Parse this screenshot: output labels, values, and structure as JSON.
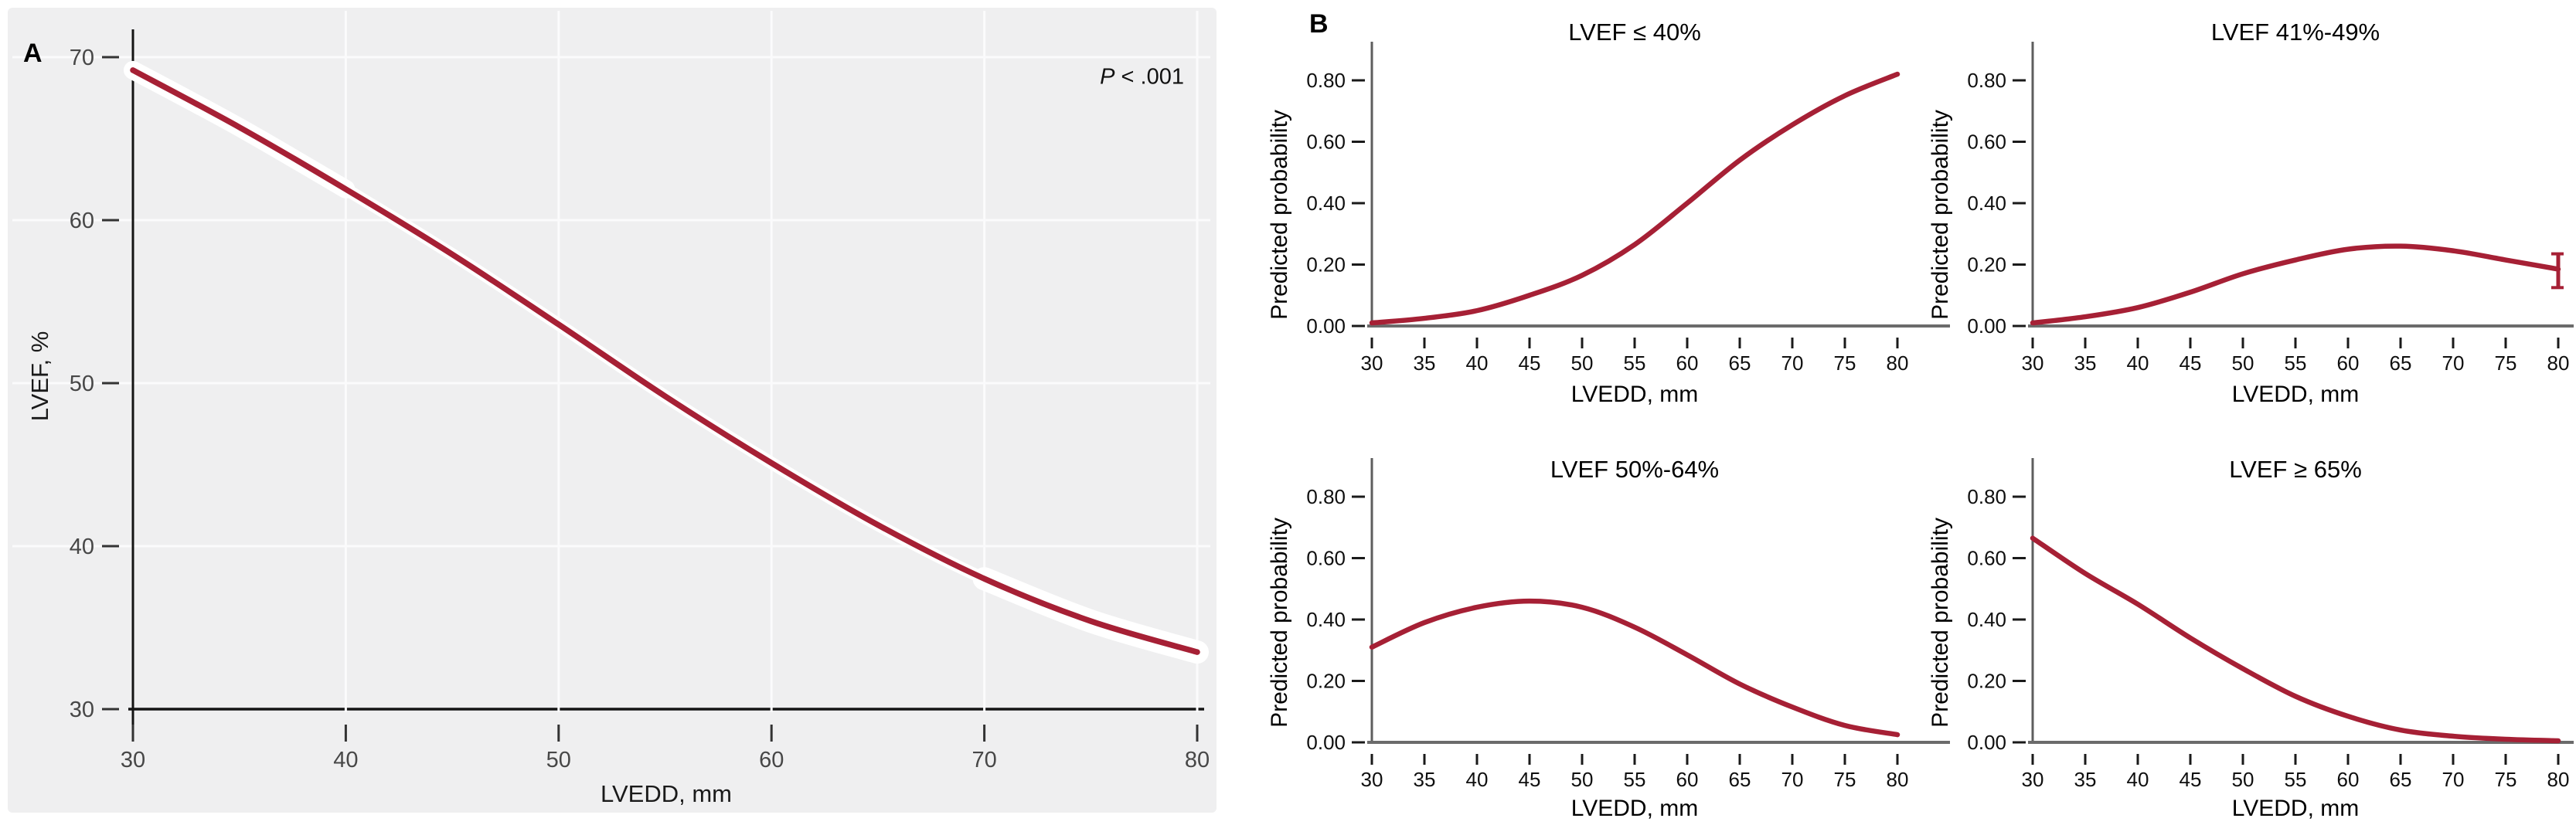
{
  "figure": {
    "panels": {
      "a_label": "A",
      "b_label": "B"
    },
    "p_value": {
      "italic": "P",
      "rest": " < .001"
    }
  },
  "colors": {
    "curve": "#A62035",
    "ci_band": "#ffffff",
    "panel_a_background": "#efeff0",
    "axis_dark": "#141414",
    "axis_gray": "#5e5e5e",
    "baseline_gray": "#6b6b6b"
  },
  "chart_data": [
    {
      "id": "panel-a",
      "type": "line",
      "panel": "A",
      "title": "",
      "xlabel": "LVEDD, mm",
      "ylabel": "LVEF, %",
      "xlim": [
        30,
        80
      ],
      "ylim": [
        30,
        70
      ],
      "grid": true,
      "annotation": "P < .001",
      "x_tick_values": [
        30,
        40,
        50,
        60,
        70,
        80
      ],
      "x_tick_labels": [
        "30",
        "40",
        "50",
        "60",
        "70",
        "80"
      ],
      "y_tick_values": [
        30,
        40,
        50,
        60,
        70
      ],
      "y_tick_labels": [
        "30",
        "40",
        "50",
        "60",
        "70"
      ],
      "line_color": "#A62035",
      "ci_color": "#ffffff",
      "points": [
        [
          30,
          69.2
        ],
        [
          35,
          65.7
        ],
        [
          40,
          61.9
        ],
        [
          45,
          57.9
        ],
        [
          50,
          53.6
        ],
        [
          55,
          49.2
        ],
        [
          60,
          45.1
        ],
        [
          65,
          41.3
        ],
        [
          70,
          38.0
        ],
        [
          75,
          35.4
        ],
        [
          80,
          33.5
        ]
      ]
    },
    {
      "id": "b-top-left",
      "type": "line",
      "panel": "B",
      "title": "LVEF ≤ 40%",
      "xlabel": "LVEDD, mm",
      "ylabel": "Predicted probability",
      "xlim": [
        30,
        80
      ],
      "ylim": [
        0,
        0.9
      ],
      "x_tick_values": [
        30,
        35,
        40,
        45,
        50,
        55,
        60,
        65,
        70,
        75,
        80
      ],
      "x_tick_labels": [
        "30",
        "35",
        "40",
        "45",
        "50",
        "55",
        "60",
        "65",
        "70",
        "75",
        "80"
      ],
      "y_tick_values": [
        0,
        0.2,
        0.4,
        0.6,
        0.8
      ],
      "y_tick_labels": [
        "0.00",
        "0.20",
        "0.40",
        "0.60",
        "0.80"
      ],
      "line_color": "#A62035",
      "points": [
        [
          30,
          0.01
        ],
        [
          35,
          0.025
        ],
        [
          40,
          0.05
        ],
        [
          45,
          0.1
        ],
        [
          50,
          0.165
        ],
        [
          55,
          0.265
        ],
        [
          60,
          0.4
        ],
        [
          65,
          0.54
        ],
        [
          70,
          0.655
        ],
        [
          75,
          0.75
        ],
        [
          80,
          0.82
        ]
      ]
    },
    {
      "id": "b-top-right",
      "type": "line",
      "panel": "B",
      "title": "LVEF 41%-49%",
      "xlabel": "LVEDD, mm",
      "ylabel": "Predicted probability",
      "xlim": [
        30,
        80
      ],
      "ylim": [
        0,
        0.9
      ],
      "x_tick_values": [
        30,
        35,
        40,
        45,
        50,
        55,
        60,
        65,
        70,
        75,
        80
      ],
      "x_tick_labels": [
        "30",
        "35",
        "40",
        "45",
        "50",
        "55",
        "60",
        "65",
        "70",
        "75",
        "80"
      ],
      "y_tick_values": [
        0,
        0.2,
        0.4,
        0.6,
        0.8
      ],
      "y_tick_labels": [
        "0.00",
        "0.20",
        "0.40",
        "0.60",
        "0.80"
      ],
      "line_color": "#A62035",
      "points": [
        [
          30,
          0.01
        ],
        [
          35,
          0.03
        ],
        [
          40,
          0.06
        ],
        [
          45,
          0.11
        ],
        [
          50,
          0.17
        ],
        [
          55,
          0.215
        ],
        [
          60,
          0.25
        ],
        [
          65,
          0.26
        ],
        [
          70,
          0.245
        ],
        [
          75,
          0.215
        ],
        [
          80,
          0.185
        ]
      ],
      "error_bar": {
        "x": 80,
        "low": 0.125,
        "high": 0.235
      }
    },
    {
      "id": "b-bottom-left",
      "type": "line",
      "panel": "B",
      "title": "LVEF 50%-64%",
      "xlabel": "LVEDD, mm",
      "ylabel": "Predicted probability",
      "xlim": [
        30,
        80
      ],
      "ylim": [
        0,
        0.9
      ],
      "x_tick_values": [
        30,
        35,
        40,
        45,
        50,
        55,
        60,
        65,
        70,
        75,
        80
      ],
      "x_tick_labels": [
        "30",
        "35",
        "40",
        "45",
        "50",
        "55",
        "60",
        "65",
        "70",
        "75",
        "80"
      ],
      "y_tick_values": [
        0,
        0.2,
        0.4,
        0.6,
        0.8
      ],
      "y_tick_labels": [
        "0.00",
        "0.20",
        "0.40",
        "0.60",
        "0.80"
      ],
      "line_color": "#A62035",
      "points": [
        [
          30,
          0.31
        ],
        [
          35,
          0.39
        ],
        [
          40,
          0.44
        ],
        [
          45,
          0.46
        ],
        [
          50,
          0.44
        ],
        [
          55,
          0.375
        ],
        [
          60,
          0.285
        ],
        [
          65,
          0.19
        ],
        [
          70,
          0.115
        ],
        [
          75,
          0.055
        ],
        [
          80,
          0.025
        ]
      ]
    },
    {
      "id": "b-bottom-right",
      "type": "line",
      "panel": "B",
      "title": "LVEF ≥ 65%",
      "xlabel": "LVEDD, mm",
      "ylabel": "Predicted probability",
      "xlim": [
        30,
        80
      ],
      "ylim": [
        0,
        0.9
      ],
      "x_tick_values": [
        30,
        35,
        40,
        45,
        50,
        55,
        60,
        65,
        70,
        75,
        80
      ],
      "x_tick_labels": [
        "30",
        "35",
        "40",
        "45",
        "50",
        "55",
        "60",
        "65",
        "70",
        "75",
        "80"
      ],
      "y_tick_values": [
        0,
        0.2,
        0.4,
        0.6,
        0.8
      ],
      "y_tick_labels": [
        "0.00",
        "0.20",
        "0.40",
        "0.60",
        "0.80"
      ],
      "line_color": "#A62035",
      "points": [
        [
          30,
          0.665
        ],
        [
          35,
          0.55
        ],
        [
          40,
          0.45
        ],
        [
          45,
          0.34
        ],
        [
          50,
          0.24
        ],
        [
          55,
          0.15
        ],
        [
          60,
          0.085
        ],
        [
          65,
          0.04
        ],
        [
          70,
          0.02
        ],
        [
          75,
          0.01
        ],
        [
          80,
          0.005
        ]
      ]
    }
  ]
}
